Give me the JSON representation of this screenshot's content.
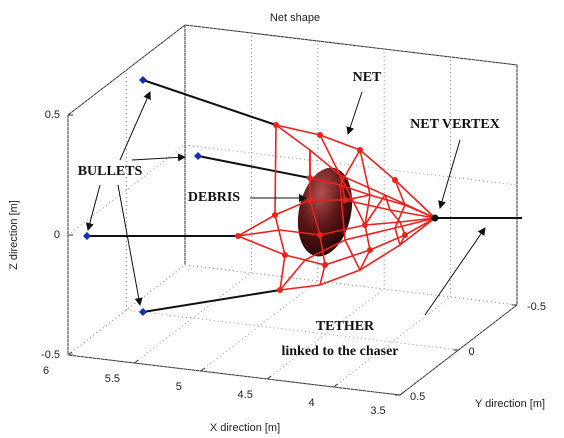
{
  "chart_data": {
    "type": "line3d",
    "title": "Net shape",
    "xlabel": "X direction [m]",
    "ylabel": "Y direction [m]",
    "zlabel": "Z direction [m]",
    "xlim": [
      6,
      3.5
    ],
    "xticks": [
      6,
      5.5,
      5,
      4.5,
      4,
      3.5
    ],
    "ylim": [
      0.5,
      -0.5
    ],
    "yticks": [
      0.5,
      0,
      -0.5
    ],
    "zlim": [
      -0.5,
      0.5
    ],
    "zticks": [
      -0.5,
      0,
      0.5
    ],
    "grid": true,
    "annotations": [
      "NET",
      "NET VERTEX",
      "BULLETS",
      "DEBRIS",
      "TETHER",
      "linked to the chaser"
    ]
  }
}
